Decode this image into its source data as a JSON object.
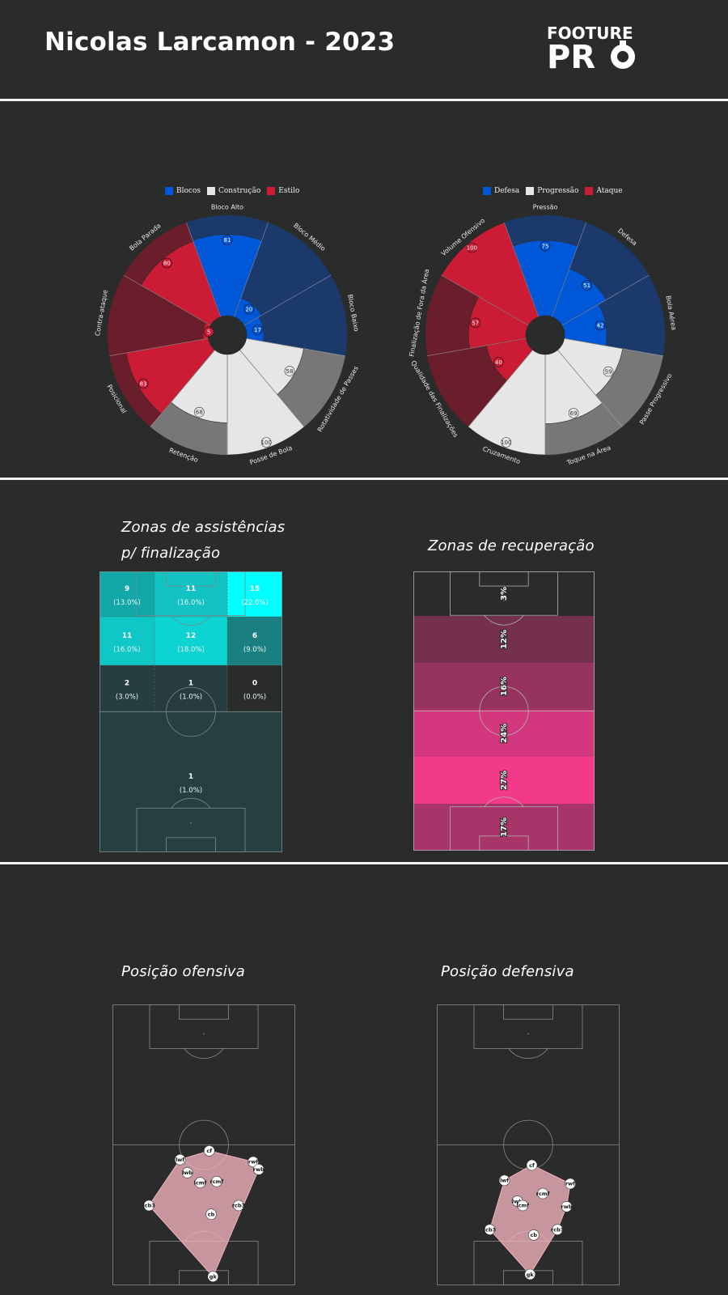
{
  "header": {
    "title": "Nicolas Larcamon - 2023"
  },
  "logo": {
    "line1": "FOOTURE",
    "line2": "PR"
  },
  "colors": {
    "background": "#2a2b2b",
    "blue": "#0057d8",
    "blue_dark": "#1b3a6b",
    "red": "#cc1b35",
    "red_dark": "#6a1e2c",
    "light": "#e6e6e6",
    "light_dark": "#777777"
  },
  "chart_data": [
    {
      "type": "radar",
      "legend": [
        {
          "name": "Blocos",
          "color": "#0057d8"
        },
        {
          "name": "Construção",
          "color": "#e6e6e6"
        },
        {
          "name": "Estilo",
          "color": "#cc1b35"
        }
      ],
      "range": [
        0,
        100
      ],
      "categories": [
        "Bloco Alto",
        "Bloco Médio",
        "Bloco Baixo",
        "Rotatividade de Passes",
        "Posse de Bola",
        "Retenção",
        "Posicional",
        "Contra-ataque",
        "Bola Parada"
      ],
      "groups": [
        "Blocos",
        "Blocos",
        "Blocos",
        "Construção",
        "Construção",
        "Construção",
        "Estilo",
        "Estilo",
        "Estilo"
      ],
      "values": [
        81,
        20,
        17,
        58,
        100,
        68,
        83,
        5,
        80
      ]
    },
    {
      "type": "radar",
      "legend": [
        {
          "name": "Defesa",
          "color": "#0057d8"
        },
        {
          "name": "Progressão",
          "color": "#e6e6e6"
        },
        {
          "name": "Ataque",
          "color": "#cc1b35"
        }
      ],
      "range": [
        0,
        100
      ],
      "categories": [
        "Pressão",
        "Defesa",
        "Bola Aérea",
        "Passe Progressivo",
        "Toque na Área",
        "Cruzamento",
        "Qualidade das Finalizações",
        "Finalização de Fora da Área",
        "Volume Ofensivo"
      ],
      "groups": [
        "Defesa",
        "Defesa",
        "Defesa",
        "Progressão",
        "Progressão",
        "Progressão",
        "Ataque",
        "Ataque",
        "Ataque"
      ],
      "values": [
        75,
        51,
        42,
        59,
        69,
        100,
        40,
        57,
        100
      ]
    },
    {
      "type": "heatmap",
      "title": "Zonas de assistências p/ finalização",
      "cells": [
        {
          "row": 0,
          "col": 0,
          "count": "9",
          "pct": "(13.0%)",
          "color": "#12a8a8"
        },
        {
          "row": 0,
          "col": 1,
          "count": "11",
          "pct": "(16.0%)",
          "color": "#13c2c2"
        },
        {
          "row": 0,
          "col": 2,
          "count": "15",
          "pct": "(22.0%)",
          "color": "#00ffff"
        },
        {
          "row": 1,
          "col": 0,
          "count": "11",
          "pct": "(16.0%)",
          "color": "#10c7c7"
        },
        {
          "row": 1,
          "col": 1,
          "count": "12",
          "pct": "(18.0%)",
          "color": "#0dd3d3"
        },
        {
          "row": 1,
          "col": 2,
          "count": "6",
          "pct": "(9.0%)",
          "color": "#1a7f80"
        },
        {
          "row": 2,
          "col": 0,
          "count": "2",
          "pct": "(3.0%)",
          "color": "#263e40"
        },
        {
          "row": 2,
          "col": 1,
          "count": "1",
          "pct": "(1.0%)",
          "color": "#263c3e"
        },
        {
          "row": 2,
          "col": 2,
          "count": "0",
          "pct": "(0.0%)",
          "color": "#2a2b2b"
        },
        {
          "row": 3,
          "col": 0,
          "count": "1",
          "pct": "(1.0%)",
          "color": "#263f3f"
        }
      ]
    },
    {
      "type": "heatmap",
      "title": "Zonas de recuperação",
      "zones": [
        {
          "pct": "3%",
          "color": "#2a2b2b"
        },
        {
          "pct": "12%",
          "color": "#74304d"
        },
        {
          "pct": "16%",
          "color": "#97335f"
        },
        {
          "pct": "24%",
          "color": "#d3377d"
        },
        {
          "pct": "27%",
          "color": "#f23a88"
        },
        {
          "pct": "17%",
          "color": "#a8356a"
        }
      ]
    },
    {
      "type": "scatter",
      "title": "Posição ofensiva",
      "points": [
        {
          "label": "cf",
          "x": 53,
          "y": 67
        },
        {
          "label": "lwf",
          "x": 37,
          "y": 71
        },
        {
          "label": "rwf",
          "x": 77,
          "y": 72
        },
        {
          "label": "rwb",
          "x": 80,
          "y": 75.5
        },
        {
          "label": "lwb",
          "x": 41,
          "y": 77
        },
        {
          "label": "rcmf",
          "x": 57,
          "y": 81
        },
        {
          "label": "lcmf",
          "x": 48,
          "y": 81.5
        },
        {
          "label": "lcb3",
          "x": 20,
          "y": 92
        },
        {
          "label": "rcb3",
          "x": 69,
          "y": 92
        },
        {
          "label": "cb",
          "x": 54,
          "y": 96
        },
        {
          "label": "gk",
          "x": 55,
          "y": 124.5
        }
      ]
    },
    {
      "type": "scatter",
      "title": "Posição defensiva",
      "points": [
        {
          "label": "cf",
          "x": 52,
          "y": 73.5
        },
        {
          "label": "lwf",
          "x": 37,
          "y": 80.5
        },
        {
          "label": "rwf",
          "x": 73,
          "y": 82
        },
        {
          "label": "rcmf",
          "x": 58,
          "y": 86.5
        },
        {
          "label": "lwb",
          "x": 44,
          "y": 90
        },
        {
          "label": "lcmf",
          "x": 47,
          "y": 92
        },
        {
          "label": "rwb",
          "x": 71,
          "y": 92.5
        },
        {
          "label": "lcb3",
          "x": 29,
          "y": 103
        },
        {
          "label": "rcb3",
          "x": 66,
          "y": 103
        },
        {
          "label": "cb",
          "x": 53,
          "y": 105.5
        },
        {
          "label": "gk",
          "x": 51,
          "y": 123.5
        }
      ]
    }
  ]
}
